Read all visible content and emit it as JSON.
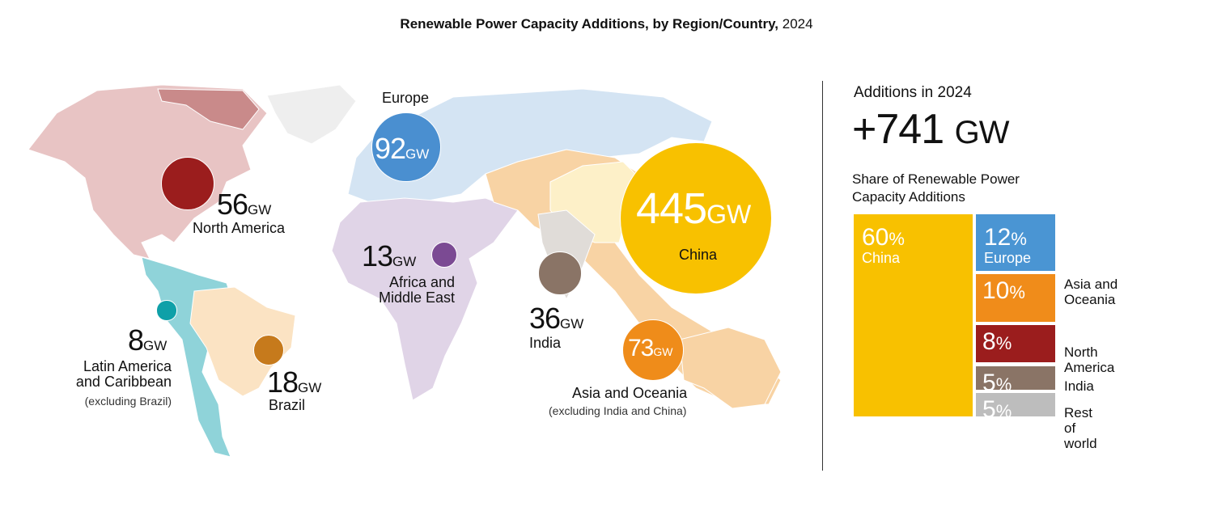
{
  "title": {
    "main": "Renewable Power Capacity Additions, by Region/Country,",
    "year": "2024"
  },
  "unit": "GW",
  "summary": {
    "heading": "Additions in 2024",
    "value": "+741",
    "unit": "GW",
    "share_heading_1": "Share of Renewable Power",
    "share_heading_2": "Capacity Additions"
  },
  "chart_data": [
    {
      "type": "bubble-map",
      "title": "Renewable Power Capacity Additions, by Region/Country, 2024",
      "unit": "GW",
      "regions": [
        {
          "name": "Europe",
          "value": 92,
          "color": "#4a8fd0"
        },
        {
          "name": "North America",
          "value": 56,
          "color": "#9b1d1d"
        },
        {
          "name": "China",
          "value": 445,
          "color": "#f8c100"
        },
        {
          "name_1": "Africa and",
          "name_2": "Middle East",
          "value": 13,
          "color": "#7b4a93"
        },
        {
          "name": "India",
          "value": 36,
          "color": "#8a7466"
        },
        {
          "name": "Asia and Oceania",
          "note": "(excluding India and China)",
          "value": 73,
          "color": "#ef8c1a"
        },
        {
          "name_1": "Latin America",
          "name_2": "and Caribbean",
          "note": "(excluding Brazil)",
          "value": 8,
          "color": "#0fa0a8"
        },
        {
          "name": "Brazil",
          "value": 18,
          "color": "#c67a1c"
        }
      ]
    },
    {
      "type": "treemap",
      "title": "Share of Renewable Power Capacity Additions",
      "unit": "%",
      "cells": [
        {
          "name": "China",
          "value": 60,
          "color": "#f8c100"
        },
        {
          "name": "Europe",
          "value": 12,
          "color": "#4a95d3"
        },
        {
          "name": "Asia and Oceania",
          "value": 10,
          "color": "#f08c1a"
        },
        {
          "name": "North America",
          "value": 8,
          "color": "#9b1d1d"
        },
        {
          "name": "India",
          "value": 5,
          "color": "#8a7466"
        },
        {
          "name": "Rest of world",
          "value": 5,
          "color": "#bdbdbd"
        }
      ]
    }
  ]
}
